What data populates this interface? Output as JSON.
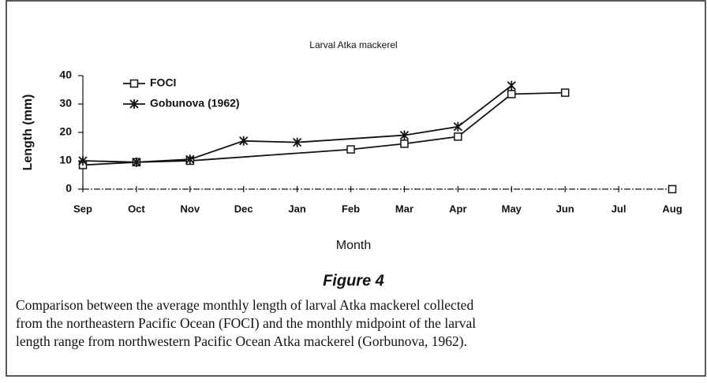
{
  "chart_data": {
    "type": "line",
    "title": "Larval Atka mackerel",
    "ylabel": "Length (mm)",
    "xlabel": "Month",
    "categories": [
      "Sep",
      "Oct",
      "Nov",
      "Dec",
      "Jan",
      "Feb",
      "Mar",
      "Apr",
      "May",
      "Jun",
      "Jul",
      "Aug"
    ],
    "ylim": [
      0,
      40
    ],
    "yticks": [
      0,
      10,
      20,
      30,
      40
    ],
    "series": [
      {
        "name": "FOCI",
        "color": "#111111",
        "marker": "square",
        "x": [
          "Sep",
          "Oct",
          "Nov",
          "Feb",
          "Mar",
          "Apr",
          "May",
          "Jun",
          null,
          "Aug"
        ],
        "values": [
          8.5,
          9.5,
          10,
          14,
          16,
          18.5,
          33.5,
          34,
          null,
          0
        ]
      },
      {
        "name": "Gobunova (1962)",
        "color": "#111111",
        "marker": "star",
        "x": [
          "Sep",
          "Oct",
          "Nov",
          "Dec",
          "Jan",
          "Mar",
          "Apr",
          "May"
        ],
        "values": [
          10,
          9.5,
          10.5,
          17,
          16.5,
          19,
          22,
          36.5
        ]
      }
    ]
  },
  "figure": {
    "label": "Figure 4",
    "caption": [
      "Comparison between the average monthly length of larval Atka mackerel collected",
      "from the northeastern Pacific Ocean (FOCI) and the monthly midpoint of the larval",
      "length range from northwestern Pacific Ocean Atka mackerel (Gorbunova, 1962)."
    ]
  }
}
